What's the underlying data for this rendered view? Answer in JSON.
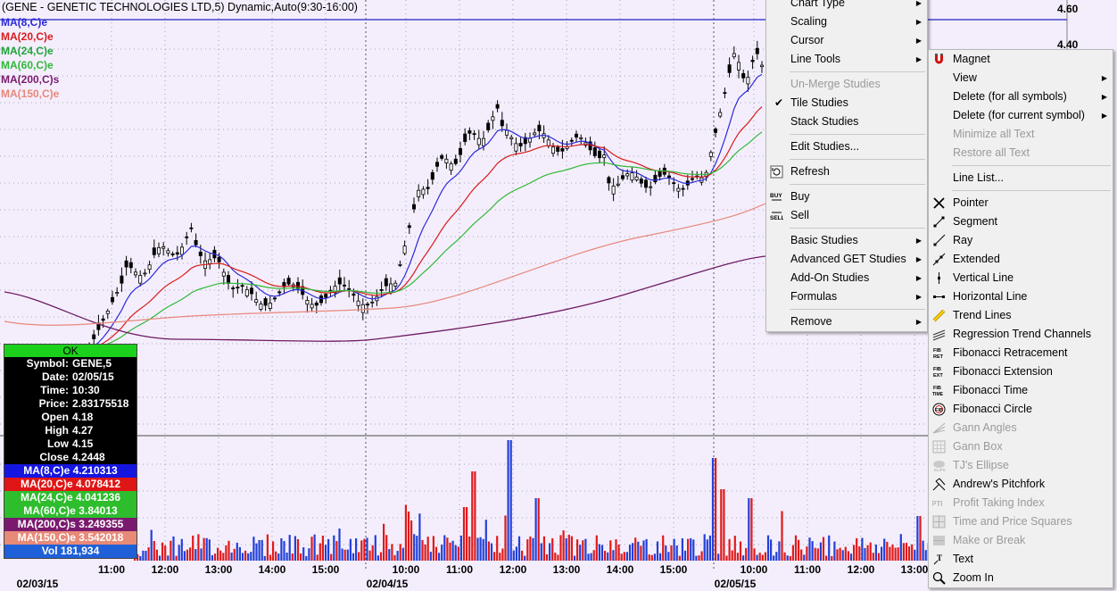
{
  "chart": {
    "title": "(GENE - GENETIC TECHNOLOGIES LTD,5) Dynamic,Auto(9:30-16:00)",
    "legend": [
      {
        "label": "MA(8,C)e",
        "color": "#2b2bd8"
      },
      {
        "label": "MA(20,C)e",
        "color": "#d81c1c"
      },
      {
        "label": "MA(24,C)e",
        "color": "#1fa33a"
      },
      {
        "label": "MA(60,C)e",
        "color": "#30b838"
      },
      {
        "label": "MA(200,C)s",
        "color": "#7a1a6e"
      },
      {
        "label": "MA(150,C)e",
        "color": "#e8887a"
      }
    ],
    "price_labels": [
      "4.60",
      "4.40"
    ],
    "time_labels": [
      "11:00",
      "12:00",
      "13:00",
      "14:00",
      "15:00",
      "10:00",
      "11:00",
      "12:00",
      "13:00",
      "14:00",
      "15:00",
      "10:00",
      "11:00",
      "12:00",
      "13:00"
    ],
    "date_labels": [
      "02/03/15",
      "02/04/15",
      "02/05/15"
    ]
  },
  "chart_data": {
    "type": "candlestick",
    "x_label": "",
    "y_label": "",
    "price_ticks": [
      4.6,
      4.4
    ],
    "series": [
      {
        "name": "MA(8,C)e",
        "last": 4.210313
      },
      {
        "name": "MA(20,C)e",
        "last": 4.078412
      },
      {
        "name": "MA(24,C)e",
        "last": 4.041236
      },
      {
        "name": "MA(60,C)e",
        "last": 3.84013
      },
      {
        "name": "MA(200,C)s",
        "last": 3.249355
      },
      {
        "name": "MA(150,C)e",
        "last": 3.542018
      }
    ],
    "volume_last": "181,934"
  },
  "data_box": {
    "ok": "OK",
    "rows": [
      {
        "label": "Symbol:",
        "value": "GENE,5"
      },
      {
        "label": "Date:",
        "value": "02/05/15"
      },
      {
        "label": "Time:",
        "value": "10:30"
      },
      {
        "label": "Price:",
        "value": "2.83175518"
      },
      {
        "label": "Open",
        "value": "4.18"
      },
      {
        "label": "High",
        "value": "4.27"
      },
      {
        "label": "Low",
        "value": "4.15"
      },
      {
        "label": "Close",
        "value": "4.2448"
      }
    ],
    "ma_rows": [
      {
        "text": "MA(8,C)e 4.210313",
        "bg": "#1515e0"
      },
      {
        "text": "MA(20,C)e 4.078412",
        "bg": "#e01515"
      },
      {
        "text": "MA(24,C)e 4.041236",
        "bg": "#2dbd2d"
      },
      {
        "text": "MA(60,C)e 3.84013",
        "bg": "#2dbd2d"
      },
      {
        "text": "MA(200,C)s 3.249355",
        "bg": "#7a1a6e"
      },
      {
        "text": "MA(150,C)e 3.542018",
        "bg": "#e88a78"
      }
    ],
    "vol": "Vol 181,934"
  },
  "menu1": {
    "items": [
      {
        "label": "Chart Type",
        "arrow": true
      },
      {
        "label": "Scaling",
        "arrow": true
      },
      {
        "label": "Cursor",
        "arrow": true
      },
      {
        "label": "Line Tools",
        "arrow": true
      },
      {
        "sep": true
      },
      {
        "label": "Un-Merge Studies",
        "disabled": true
      },
      {
        "label": "Tile Studies",
        "checked": true
      },
      {
        "label": "Stack Studies"
      },
      {
        "sep": true
      },
      {
        "label": "Edit Studies..."
      },
      {
        "sep": true
      },
      {
        "label": "Refresh",
        "icon": "refresh-icon"
      },
      {
        "sep": true
      },
      {
        "label": "Buy",
        "icon": "buy-icon"
      },
      {
        "label": "Sell",
        "icon": "sell-icon"
      },
      {
        "sep": true
      },
      {
        "label": "Basic Studies",
        "arrow": true
      },
      {
        "label": "Advanced GET Studies",
        "arrow": true
      },
      {
        "label": "Add-On Studies",
        "arrow": true
      },
      {
        "label": "Formulas",
        "arrow": true
      },
      {
        "sep": true
      },
      {
        "label": "Remove",
        "arrow": true
      }
    ]
  },
  "menu2": {
    "items": [
      {
        "label": "Magnet",
        "icon": "magnet-icon"
      },
      {
        "label": "View",
        "arrow": true
      },
      {
        "label": "Delete (for all symbols)",
        "arrow": true
      },
      {
        "label": "Delete (for current symbol)",
        "arrow": true
      },
      {
        "label": "Minimize all Text",
        "disabled": true
      },
      {
        "label": "Restore all Text",
        "disabled": true
      },
      {
        "sep": true
      },
      {
        "label": "Line List..."
      },
      {
        "sep": true
      },
      {
        "label": "Pointer",
        "icon": "pointer-icon"
      },
      {
        "label": "Segment",
        "icon": "segment-icon"
      },
      {
        "label": "Ray",
        "icon": "ray-icon"
      },
      {
        "label": "Extended",
        "icon": "extended-icon"
      },
      {
        "label": "Vertical Line",
        "icon": "vertical-line-icon"
      },
      {
        "label": "Horizontal Line",
        "icon": "horizontal-line-icon"
      },
      {
        "label": "Trend Lines",
        "icon": "trend-lines-icon"
      },
      {
        "label": "Regression Trend Channels",
        "icon": "regression-icon"
      },
      {
        "label": "Fibonacci Retracement",
        "icon": "fib-ret-icon"
      },
      {
        "label": "Fibonacci Extension",
        "icon": "fib-ext-icon"
      },
      {
        "label": "Fibonacci Time",
        "icon": "fib-time-icon"
      },
      {
        "label": "Fibonacci Circle",
        "icon": "fib-circle-icon"
      },
      {
        "label": "Gann Angles",
        "icon": "gann-angles-icon",
        "disabled": true
      },
      {
        "label": "Gann Box",
        "icon": "gann-box-icon",
        "disabled": true
      },
      {
        "label": "TJ's Ellipse",
        "icon": "ellipse-icon",
        "disabled": true
      },
      {
        "label": "Andrew's Pitchfork",
        "icon": "pitchfork-icon"
      },
      {
        "label": "Profit Taking Index",
        "icon": "pti-icon",
        "disabled": true
      },
      {
        "label": "Time and Price Squares",
        "icon": "squares-icon",
        "disabled": true
      },
      {
        "label": "Make or Break",
        "icon": "make-break-icon",
        "disabled": true
      },
      {
        "label": "Text",
        "icon": "text-icon"
      },
      {
        "label": "Zoom In",
        "icon": "zoom-in-icon"
      }
    ]
  }
}
